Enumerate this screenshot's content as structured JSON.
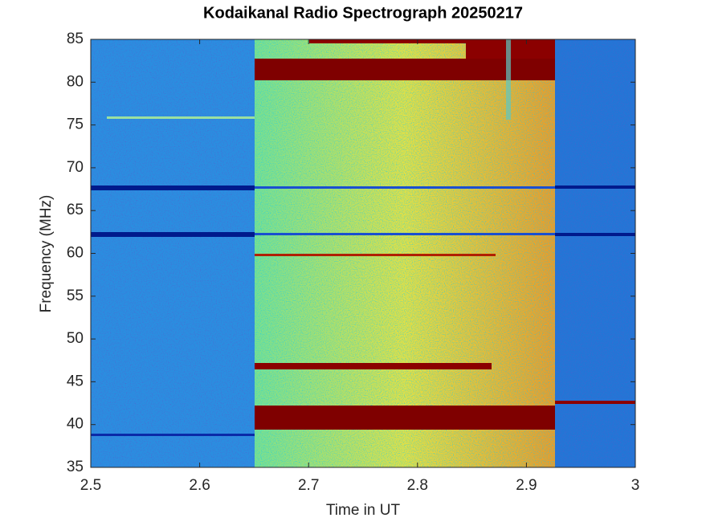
{
  "chart_data": {
    "type": "spectrogram",
    "title": "Kodaikanal Radio Spectrograph  20250217",
    "xlabel": "Time in UT",
    "ylabel": "Frequency (MHz)",
    "xlim": [
      2.5,
      3
    ],
    "xticks": [
      2.5,
      2.6,
      2.7,
      2.8,
      2.9,
      3
    ],
    "ylim": [
      35,
      85
    ],
    "yticks": [
      35,
      40,
      45,
      50,
      55,
      60,
      65,
      70,
      75,
      80,
      85
    ]
  }
}
